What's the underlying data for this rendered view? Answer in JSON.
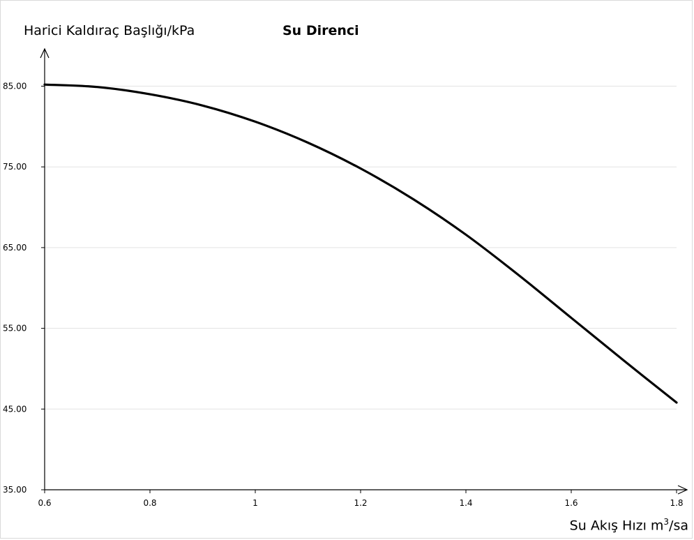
{
  "chart_data": {
    "type": "line",
    "title": "Su Direnci",
    "ylabel": "Harici Kaldıraç Başlığı/kPa",
    "xlabel": {
      "text": "Su Akış Hızı m",
      "sup": "3",
      "suffix": "/sa"
    },
    "xlim": [
      0.6,
      1.8
    ],
    "ylim": [
      35,
      90
    ],
    "xticks": [
      0.6,
      0.8,
      1,
      1.2,
      1.4,
      1.6,
      1.8
    ],
    "xtick_labels": [
      "0.6",
      "0.8",
      "1",
      "1.2",
      "1.4",
      "1.6",
      "1.8"
    ],
    "yticks": [
      35,
      45,
      55,
      65,
      75,
      85
    ],
    "ytick_labels": [
      "35.00",
      "45.00",
      "55.00",
      "65.00",
      "75.00",
      "85.00"
    ],
    "grid": true,
    "series": [
      {
        "color": "#000000",
        "x": [
          0.6,
          0.7,
          0.8,
          0.9,
          1.0,
          1.1,
          1.2,
          1.3,
          1.4,
          1.5,
          1.6,
          1.7,
          1.8
        ],
        "y": [
          85.2,
          84.9,
          84.0,
          82.6,
          80.6,
          78.0,
          74.8,
          71.0,
          66.6,
          61.6,
          56.3,
          51.0,
          45.8
        ]
      }
    ]
  }
}
